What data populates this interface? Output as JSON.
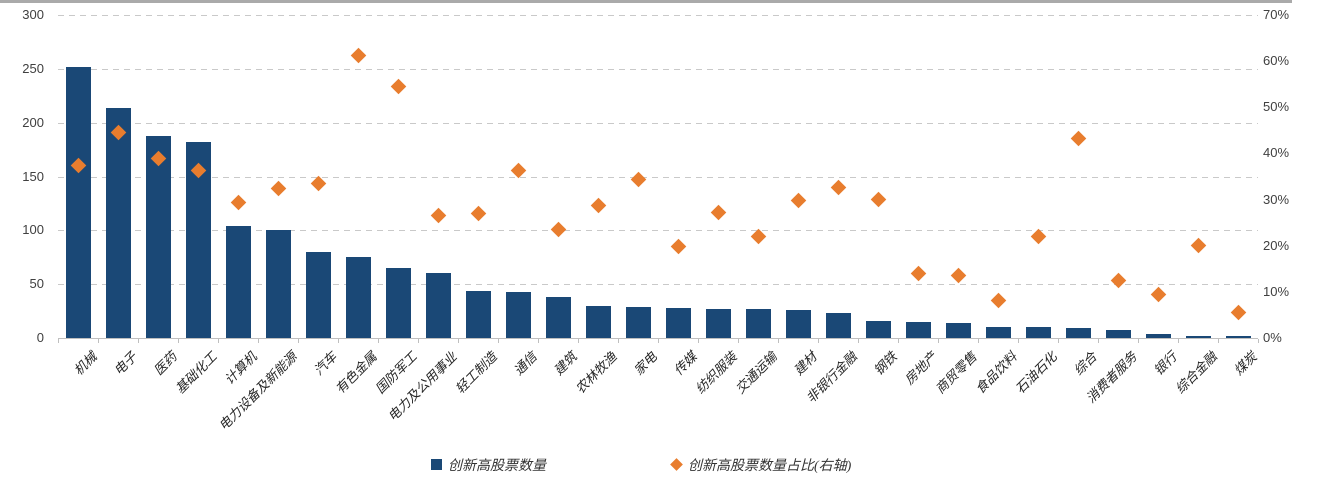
{
  "chart_data": {
    "type": "bar",
    "subtype": "combo-bar-with-scatter-markers",
    "title": "",
    "categories": [
      "机械",
      "电子",
      "医药",
      "基础化工",
      "计算机",
      "电力设备及新能源",
      "汽车",
      "有色金属",
      "国防军工",
      "电力及公用事业",
      "轻工制造",
      "通信",
      "建筑",
      "农林牧渔",
      "家电",
      "传媒",
      "纺织服装",
      "交通运输",
      "建材",
      "非银行金融",
      "钢铁",
      "房地产",
      "商贸零售",
      "食品饮料",
      "石油石化",
      "综合",
      "消费者服务",
      "银行",
      "综合金融",
      "煤炭"
    ],
    "series": [
      {
        "name": "创新高股票数量",
        "type": "bar",
        "axis": "left",
        "color": "#1A4876",
        "values": [
          252,
          214,
          188,
          182,
          104,
          100,
          80,
          75,
          65,
          60,
          44,
          43,
          38,
          30,
          29,
          28,
          27,
          27,
          26,
          23,
          16,
          15,
          14,
          10,
          10,
          9,
          7,
          4,
          2,
          2
        ]
      },
      {
        "name": "创新高股票数量占比(右轴)",
        "type": "scatter",
        "marker": "diamond",
        "axis": "right",
        "color": "#E87D2E",
        "values": [
          37.3,
          44.5,
          38.8,
          36.4,
          29.3,
          32.3,
          33.4,
          61.2,
          54.4,
          26.6,
          26.9,
          36.2,
          23.6,
          28.8,
          34.4,
          19.8,
          27.3,
          22.1,
          29.7,
          32.6,
          30.1,
          14.0,
          13.5,
          8.2,
          21.9,
          43.3,
          12.4,
          9.4,
          20.0,
          5.5
        ]
      }
    ],
    "left_axis": {
      "min": 0,
      "max": 300,
      "tick_labels": [
        "300",
        "250",
        "200",
        "150",
        "100",
        "50",
        "0"
      ]
    },
    "right_axis": {
      "min": 0,
      "max": 70,
      "tick_labels": [
        "70%",
        "60%",
        "50%",
        "40%",
        "30%",
        "20%",
        "10%",
        "0%"
      ]
    },
    "grid": "horizontal dashed, on",
    "legend_position": "bottom-center"
  },
  "legend": {
    "items": [
      {
        "label": "创新高股票数量",
        "marker": "square",
        "color": "#1A4876"
      },
      {
        "label": "创新高股票数量占比(右轴)",
        "marker": "diamond",
        "color": "#E87D2E"
      }
    ]
  },
  "colors": {
    "bar": "#1A4876",
    "marker": "#E87D2E",
    "gridline": "#c9c9c9",
    "axis_text": "#404040",
    "top_border": "#aaaaaa"
  }
}
